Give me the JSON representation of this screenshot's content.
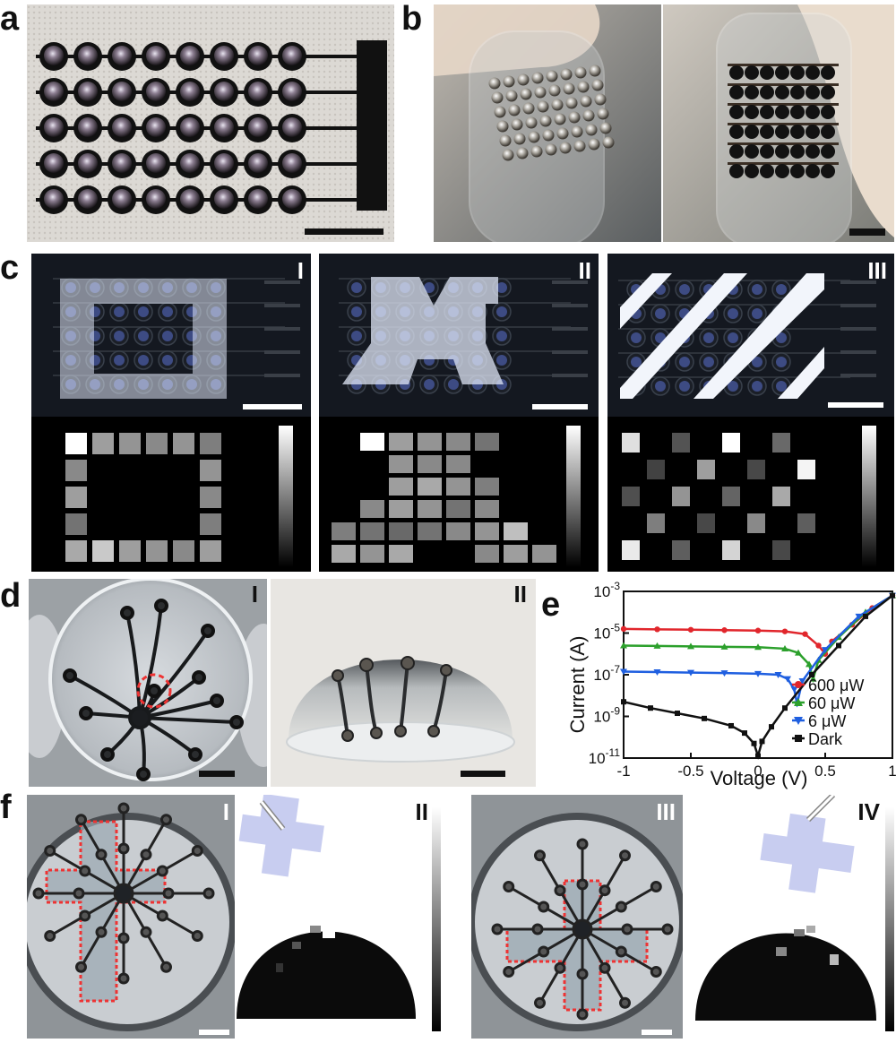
{
  "panel_labels": {
    "a": "a",
    "b": "b",
    "c": "c",
    "d": "d",
    "e": "e",
    "f": "f"
  },
  "panel_c_labels": [
    "I",
    "II",
    "III"
  ],
  "panel_d_labels": [
    "I",
    "II"
  ],
  "panel_f_labels": [
    "I",
    "II",
    "III",
    "IV"
  ],
  "colors": {
    "photo_dark": "#141820",
    "pixel_blue": "#5a6fd0",
    "marker_red": "#e1262c",
    "marker_green": "#2ca02c",
    "marker_blue": "#1f5fe0",
    "marker_black": "#111111"
  },
  "heatmaps": {
    "c1": [
      [
        1.0,
        0.55,
        0.5,
        0.45,
        0.5,
        0.4
      ],
      [
        0.45,
        0,
        0,
        0,
        0,
        0.5
      ],
      [
        0.55,
        0,
        0,
        0,
        0,
        0.45
      ],
      [
        0.35,
        0,
        0,
        0,
        0,
        0.4
      ],
      [
        0.6,
        0.75,
        0.55,
        0.5,
        0.45,
        0.55
      ]
    ],
    "c2": [
      [
        0,
        1.0,
        0.55,
        0.5,
        0.45,
        0.35,
        0
      ],
      [
        0,
        0,
        0.5,
        0.45,
        0.45,
        0,
        0
      ],
      [
        0,
        0,
        0.55,
        0.6,
        0.5,
        0.4,
        0
      ],
      [
        0,
        0.45,
        0.55,
        0.5,
        0.35,
        0.45,
        0
      ],
      [
        0.4,
        0.35,
        0.3,
        0.35,
        0.45,
        0.5,
        0.7
      ],
      [
        0.6,
        0.5,
        0.6,
        0,
        0,
        0.45,
        0.55,
        0.5
      ]
    ],
    "c3": [
      [
        0.85,
        0,
        0.2,
        0,
        1.0,
        0,
        0.3,
        0
      ],
      [
        0,
        0.12,
        0,
        0.55,
        0,
        0.15,
        0,
        0.95
      ],
      [
        0.18,
        0,
        0.5,
        0,
        0.28,
        0,
        0.6,
        0
      ],
      [
        0,
        0.4,
        0,
        0.15,
        0,
        0.45,
        0,
        0.25
      ],
      [
        0.9,
        0,
        0.25,
        0,
        0.8,
        0,
        0.15,
        0
      ]
    ]
  },
  "chart_data": {
    "type": "line",
    "xlabel": "Voltage (V)",
    "ylabel": "Current (A)",
    "xlim": [
      -1,
      1
    ],
    "ylim_log10": [
      -11,
      -3
    ],
    "log_y": true,
    "x_ticks": [
      "-1",
      "-0.5",
      "0",
      "0.5",
      "1"
    ],
    "y_ticks": [
      {
        "base": "10",
        "exp": "-11"
      },
      {
        "base": "10",
        "exp": "-9"
      },
      {
        "base": "10",
        "exp": "-7"
      },
      {
        "base": "10",
        "exp": "-5"
      },
      {
        "base": "10",
        "exp": "-3"
      }
    ],
    "legend_position": "bottom-right",
    "series": [
      {
        "name": "600 μW",
        "color": "#e1262c",
        "marker": "circle",
        "x": [
          -1,
          -0.75,
          -0.5,
          -0.25,
          0,
          0.2,
          0.35,
          0.45,
          0.5,
          0.55,
          0.7,
          0.85,
          1.0
        ],
        "log10_y": [
          -4.8,
          -4.82,
          -4.84,
          -4.86,
          -4.88,
          -4.92,
          -5.05,
          -5.6,
          -6.0,
          -5.4,
          -4.6,
          -3.8,
          -3.2
        ]
      },
      {
        "name": "60 μW",
        "color": "#2ca02c",
        "marker": "triangle-up",
        "x": [
          -1,
          -0.75,
          -0.5,
          -0.25,
          0,
          0.2,
          0.3,
          0.38,
          0.41,
          0.45,
          0.6,
          0.8,
          1.0
        ],
        "log10_y": [
          -5.6,
          -5.62,
          -5.64,
          -5.66,
          -5.68,
          -5.75,
          -5.95,
          -6.5,
          -7.2,
          -6.3,
          -5.2,
          -4.0,
          -3.2
        ]
      },
      {
        "name": "6 μW",
        "color": "#1f5fe0",
        "marker": "triangle-down",
        "x": [
          -1,
          -0.75,
          -0.5,
          -0.25,
          0,
          0.15,
          0.22,
          0.27,
          0.29,
          0.33,
          0.5,
          0.75,
          1.0
        ],
        "log10_y": [
          -6.85,
          -6.87,
          -6.9,
          -6.92,
          -6.95,
          -7.0,
          -7.2,
          -7.7,
          -8.4,
          -7.3,
          -5.8,
          -4.2,
          -3.2
        ]
      },
      {
        "name": "Dark",
        "color": "#111111",
        "marker": "square",
        "x": [
          -1,
          -0.8,
          -0.6,
          -0.4,
          -0.2,
          -0.1,
          -0.03,
          0,
          0.03,
          0.1,
          0.2,
          0.4,
          0.6,
          0.8,
          1.0
        ],
        "log10_y": [
          -8.3,
          -8.6,
          -8.85,
          -9.1,
          -9.45,
          -9.8,
          -10.3,
          -10.9,
          -10.2,
          -9.5,
          -8.6,
          -7.0,
          -5.6,
          -4.2,
          -3.2
        ]
      }
    ]
  }
}
